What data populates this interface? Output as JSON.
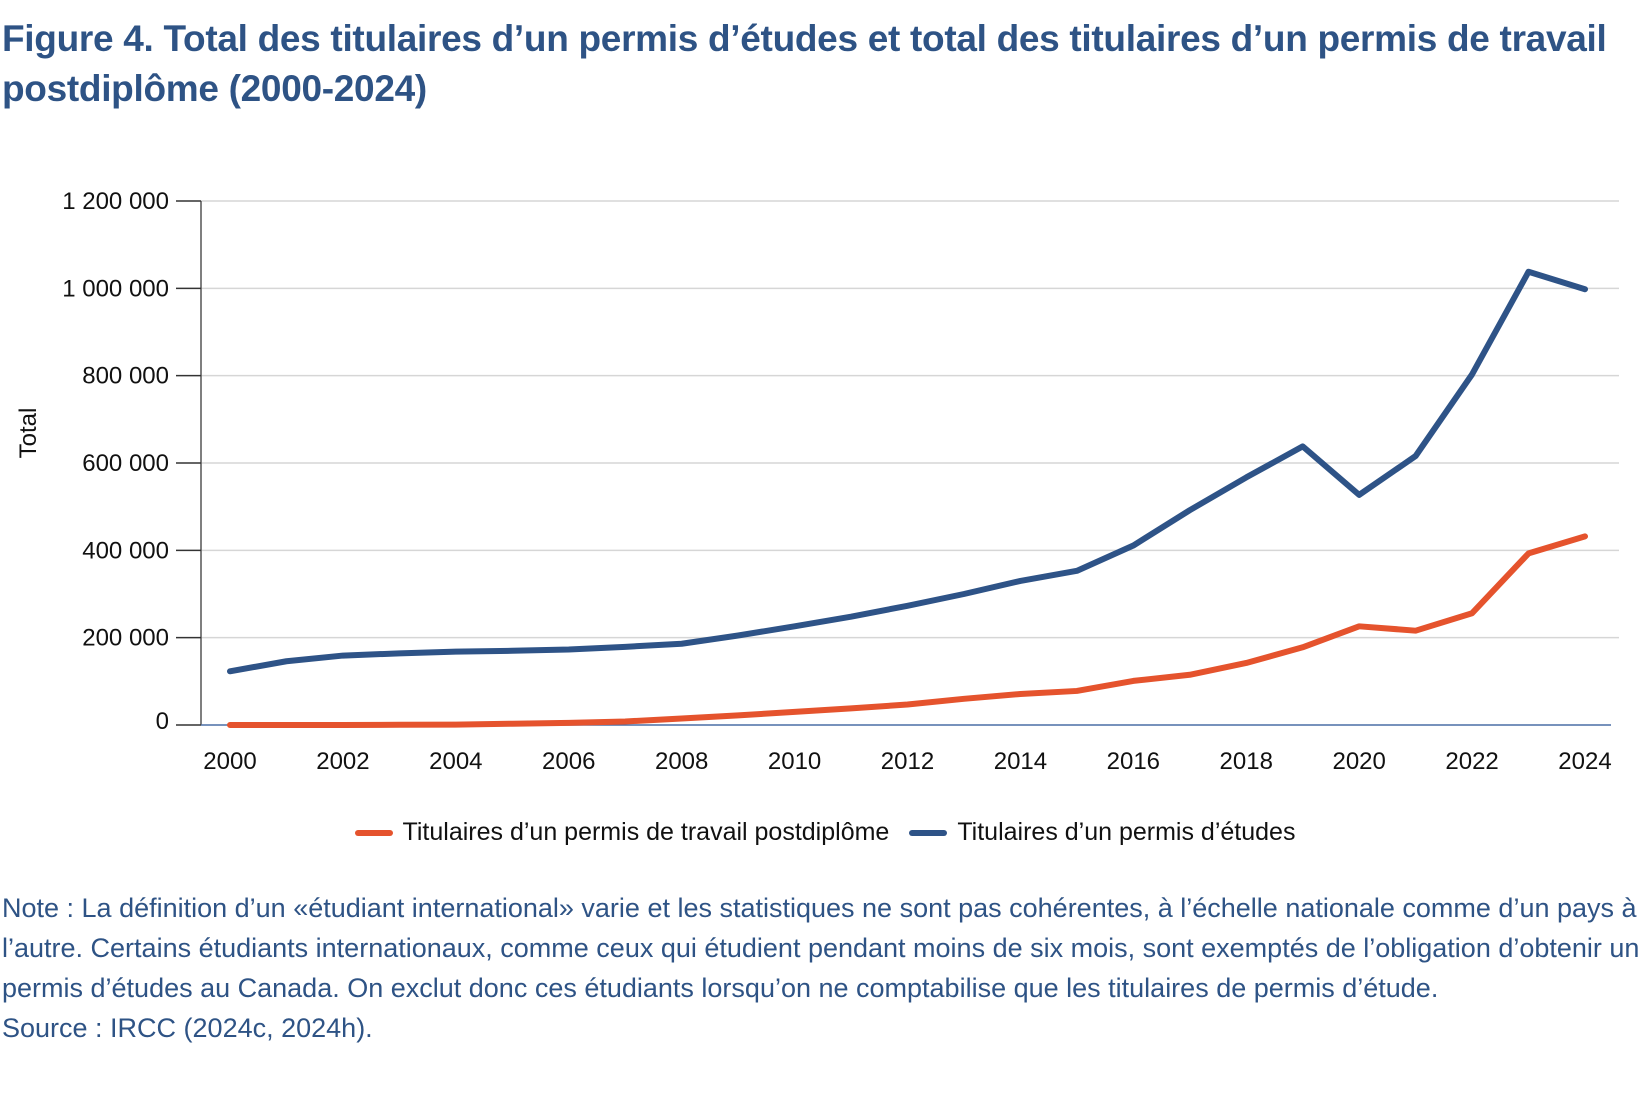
{
  "title": "Figure 4. Total des titulaires d’un permis d’études et total des titulaires d’un permis de travail postdiplôme (2000-2024)",
  "colors": {
    "title": "#2e5385",
    "pgwp": "#e5532d",
    "study": "#2e5387",
    "grid": "#d6d6d6"
  },
  "chart_data": {
    "type": "line",
    "title": "",
    "xlabel": "",
    "ylabel": "Total",
    "ylim": [
      0,
      1200000
    ],
    "yticks": [
      0,
      200000,
      400000,
      600000,
      800000,
      1000000,
      1200000
    ],
    "ytick_labels": [
      "0",
      "200 000",
      "400 000",
      "600 000",
      "800 000",
      "1 000 000",
      "1 200 000"
    ],
    "xticks": [
      2000,
      2002,
      2004,
      2006,
      2008,
      2010,
      2012,
      2014,
      2016,
      2018,
      2020,
      2022,
      2024
    ],
    "xtick_labels": [
      "2000",
      "2002",
      "2004",
      "2006",
      "2008",
      "2010",
      "2012",
      "2014",
      "2016",
      "2018",
      "2020",
      "2022",
      "2024"
    ],
    "grid": true,
    "legend_position": "bottom",
    "x": [
      2000,
      2001,
      2002,
      2003,
      2004,
      2005,
      2006,
      2007,
      2008,
      2009,
      2010,
      2011,
      2012,
      2013,
      2014,
      2015,
      2016,
      2017,
      2018,
      2019,
      2020,
      2021,
      2022,
      2023,
      2024
    ],
    "series": [
      {
        "name": "Titulaires d’un permis de travail postdiplôme",
        "color": "#e5532d",
        "values": [
          0,
          0,
          0,
          500,
          1000,
          3000,
          5000,
          8000,
          15000,
          22000,
          30000,
          38000,
          47000,
          60000,
          71000,
          78000,
          101000,
          115000,
          142000,
          178000,
          226000,
          216000,
          256000,
          393000,
          432000
        ]
      },
      {
        "name": "Titulaires d’un permis d’études",
        "color": "#2e5387",
        "values": [
          123000,
          146000,
          159000,
          164000,
          168000,
          170000,
          173000,
          179000,
          186000,
          205000,
          226000,
          248000,
          273000,
          300000,
          330000,
          353000,
          411000,
          492000,
          567000,
          638000,
          527000,
          616000,
          803000,
          1038000,
          998000
        ]
      }
    ]
  },
  "notes": {
    "note": "Note : La définition d’un «étudiant international» varie et les statistiques ne sont pas cohérentes, à l’échelle nationale comme d’un pays à l’autre. Certains étudiants internationaux, comme ceux qui étudient pendant moins de six mois, sont exemptés de l’obligation d’obtenir un permis d’études au Canada. On exclut donc ces étudiants lorsqu’on ne comptabilise que les titulaires de permis d’étude.",
    "source": "Source : IRCC (2024c, 2024h)."
  }
}
